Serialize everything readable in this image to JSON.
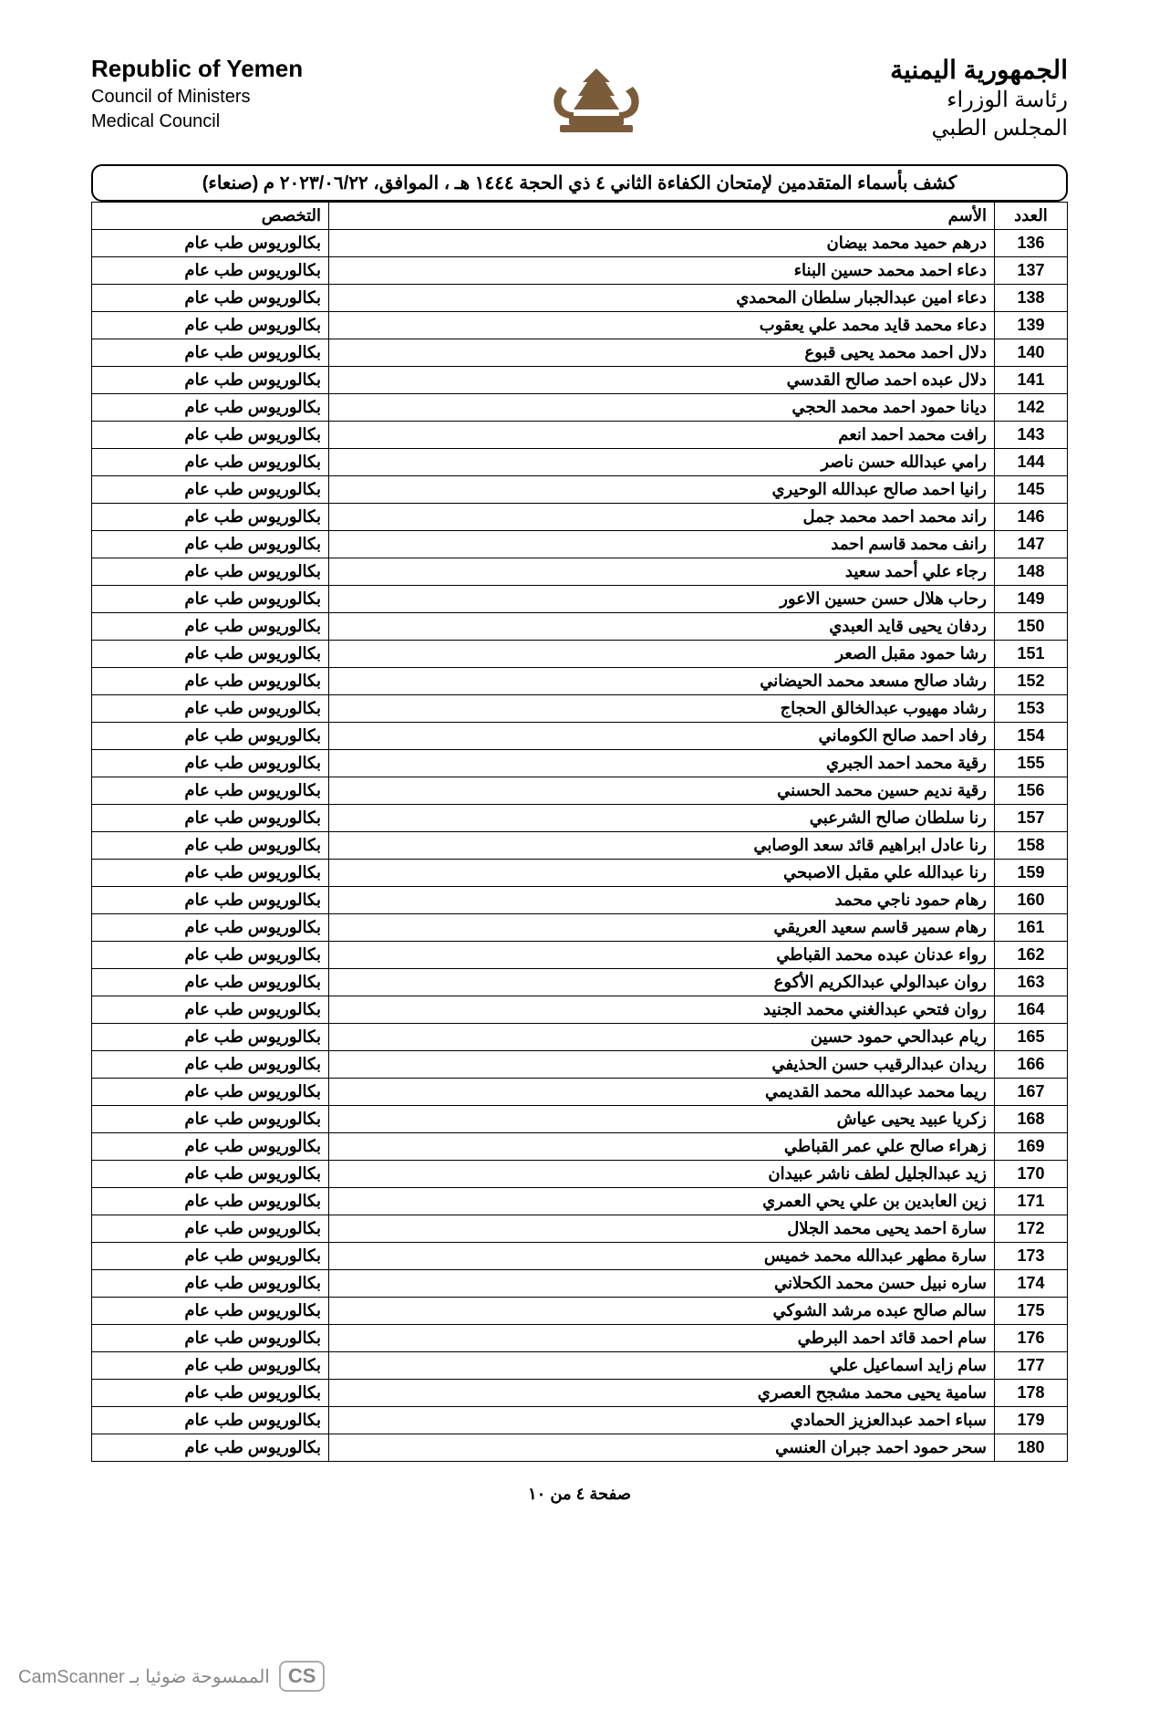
{
  "header": {
    "left": {
      "title": "Republic of Yemen",
      "line1": "Council of Ministers",
      "line2": "Medical Council"
    },
    "right": {
      "title": "الجمهورية اليمنية",
      "line1": "رئاسة الوزراء",
      "line2": "المجلس الطبي"
    }
  },
  "doc_title": "كشف بأسماء المتقدمين لإمتحان الكفاءة الثاني ٤ ذي الحجة ١٤٤٤ هـ ، الموافق، ٢٠٢٣/٠٦/٢٢ م (صنعاء)",
  "columns": {
    "num": "العدد",
    "name": "الأسم",
    "spec": "التخصص"
  },
  "spec_value": "بكالوريوس طب عام",
  "rows": [
    {
      "n": "136",
      "name": "درهم حميد محمد بيضان"
    },
    {
      "n": "137",
      "name": "دعاء احمد محمد حسين البناء"
    },
    {
      "n": "138",
      "name": "دعاء امين عبدالجبار سلطان المحمدي"
    },
    {
      "n": "139",
      "name": "دعاء محمد قايد محمد علي يعقوب"
    },
    {
      "n": "140",
      "name": "دلال احمد محمد يحيى قبوع"
    },
    {
      "n": "141",
      "name": "دلال عبده احمد صالح القدسي"
    },
    {
      "n": "142",
      "name": "ديانا حمود احمد محمد الحجي"
    },
    {
      "n": "143",
      "name": "رافت محمد احمد انعم"
    },
    {
      "n": "144",
      "name": "رامي عبدالله حسن ناصر"
    },
    {
      "n": "145",
      "name": "رانيا احمد صالح عبدالله الوحيري"
    },
    {
      "n": "146",
      "name": "راند محمد احمد محمد جمل"
    },
    {
      "n": "147",
      "name": "رانف محمد قاسم احمد"
    },
    {
      "n": "148",
      "name": "رجاء علي أحمد سعيد"
    },
    {
      "n": "149",
      "name": "رحاب هلال حسن حسين الاعور"
    },
    {
      "n": "150",
      "name": "ردفان يحيى قايد العبدي"
    },
    {
      "n": "151",
      "name": "رشا حمود مقبل الصعر"
    },
    {
      "n": "152",
      "name": "رشاد صالح مسعد محمد الحيضاني"
    },
    {
      "n": "153",
      "name": "رشاد مهيوب عبدالخالق الحجاج"
    },
    {
      "n": "154",
      "name": "رفاد احمد صالح الكوماني"
    },
    {
      "n": "155",
      "name": "رقية محمد احمد الجبري"
    },
    {
      "n": "156",
      "name": "رقية نديم حسين محمد الحسني"
    },
    {
      "n": "157",
      "name": "رنا سلطان صالح الشرعبي"
    },
    {
      "n": "158",
      "name": "رنا عادل ابراهيم قائد سعد الوصابي"
    },
    {
      "n": "159",
      "name": "رنا عبدالله علي مقبل الاصبحي"
    },
    {
      "n": "160",
      "name": "رهام حمود ناجي محمد"
    },
    {
      "n": "161",
      "name": "رهام سمير قاسم سعيد العريقي"
    },
    {
      "n": "162",
      "name": "رواء عدنان عبده محمد القباطي"
    },
    {
      "n": "163",
      "name": "روان عبدالولي عبدالكريم الأكوع"
    },
    {
      "n": "164",
      "name": "روان فتحي عبدالغني محمد الجنيد"
    },
    {
      "n": "165",
      "name": "ريام عبدالحي حمود حسين"
    },
    {
      "n": "166",
      "name": "ريدان عبدالرقيب حسن الحذيفي"
    },
    {
      "n": "167",
      "name": "ريما محمد عبدالله محمد القديمي"
    },
    {
      "n": "168",
      "name": "زكريا عبيد يحيى عياش"
    },
    {
      "n": "169",
      "name": "زهراء صالح علي عمر القباطي"
    },
    {
      "n": "170",
      "name": "زيد عبدالجليل لطف ناشر عبيدان"
    },
    {
      "n": "171",
      "name": "زين العابدين بن علي يحي العمري"
    },
    {
      "n": "172",
      "name": "سارة احمد يحيى محمد الجلال"
    },
    {
      "n": "173",
      "name": "سارة مطهر عبدالله محمد خميس"
    },
    {
      "n": "174",
      "name": "ساره نبيل حسن محمد الكحلاني"
    },
    {
      "n": "175",
      "name": "سالم صالح عبده مرشد الشوكي"
    },
    {
      "n": "176",
      "name": "سام احمد قائد احمد البرطي"
    },
    {
      "n": "177",
      "name": "سام زايد اسماعيل علي"
    },
    {
      "n": "178",
      "name": "سامية يحيى محمد مشجح العصري"
    },
    {
      "n": "179",
      "name": "سباء احمد عبدالعزيز الحمادي"
    },
    {
      "n": "180",
      "name": "سحر حمود احمد جبران العنسي"
    }
  ],
  "page_number": "صفحة ٤ من ١٠",
  "footer": {
    "cs": "CS",
    "text": "الممسوحة ضوئيا بـ CamScanner"
  },
  "colors": {
    "page_bg": "#ffffff",
    "text": "#000000",
    "border": "#000000",
    "footer_text": "#888888"
  }
}
